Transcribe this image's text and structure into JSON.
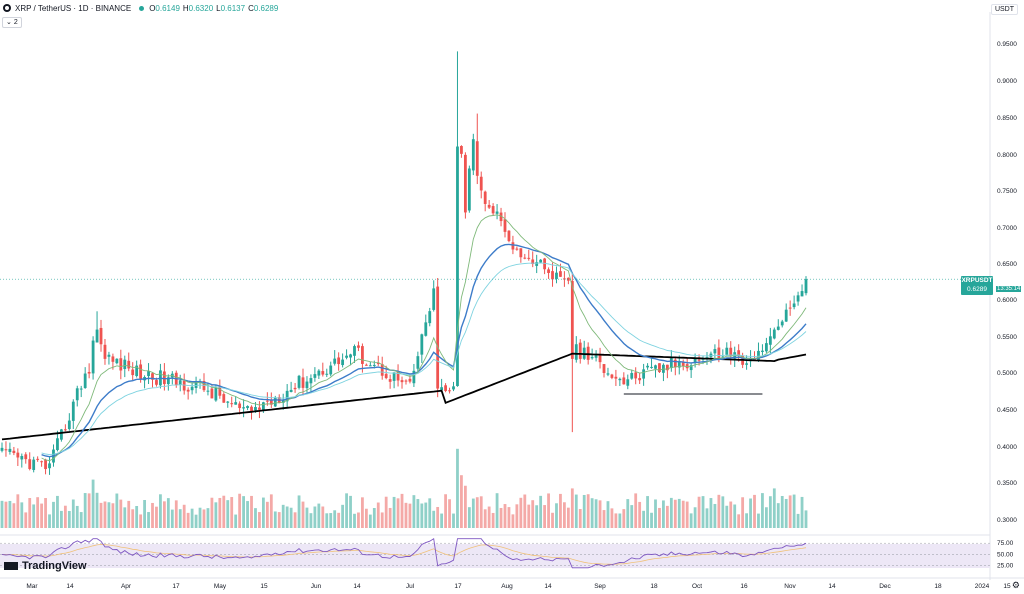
{
  "header": {
    "symbol": "XRP / TetherUS · 1D · BINANCE",
    "o_label": "O",
    "o_value": "0.6149",
    "h_label": "H",
    "h_value": "0.6320",
    "l_label": "L",
    "l_value": "0.6137",
    "c_label": "C",
    "c_value": "0.6289",
    "indicator_count": "2",
    "currency": "USDT"
  },
  "price_tag": {
    "symbol": "XRPUSDT",
    "price": "0.6289",
    "countdown": "13:35:14"
  },
  "branding": {
    "name": "TradingView"
  },
  "colors": {
    "up": "#26a69a",
    "down": "#ef5350",
    "ema_fast": "#7fb97a",
    "ema_mid": "#3d7cc9",
    "ema_light": "#7fd3e0",
    "ema_long": "#000000",
    "rsi": "#7e57c2"
  },
  "chart_data": {
    "type": "candlestick",
    "y_ticks": [
      "0.9500",
      "0.9000",
      "0.8500",
      "0.8000",
      "0.7500",
      "0.7000",
      "0.6500",
      "0.6000",
      "0.5500",
      "0.5000",
      "0.4500",
      "0.4000",
      "0.3500",
      "0.3000"
    ],
    "x_ticks": [
      "Mar",
      "14",
      "Apr",
      "17",
      "May",
      "15",
      "Jun",
      "14",
      "Jul",
      "17",
      "Aug",
      "14",
      "Sep",
      "18",
      "Oct",
      "16",
      "Nov",
      "14",
      "Dec",
      "18",
      "2024",
      "15"
    ],
    "ylim": [
      0.29,
      0.97
    ],
    "rsi_ticks": [
      "75.00",
      "50.00",
      "25.00"
    ],
    "support_level": 0.472,
    "ohlc_anchors": [
      [
        "Mar",
        0.384,
        0.392,
        0.372,
        0.386
      ],
      [
        "14",
        0.372,
        0.38,
        0.355,
        0.37
      ],
      [
        "Apr",
        0.545,
        0.585,
        0.5,
        0.51
      ],
      [
        "17",
        0.537,
        0.545,
        0.49,
        0.5
      ],
      [
        "May",
        0.47,
        0.48,
        0.45,
        0.46
      ],
      [
        "15",
        0.445,
        0.46,
        0.42,
        0.45
      ],
      [
        "Jun",
        0.5,
        0.52,
        0.47,
        0.49
      ],
      [
        "14",
        0.525,
        0.55,
        0.51,
        0.53
      ],
      [
        "Jul",
        0.478,
        0.49,
        0.465,
        0.48
      ],
      [
        "17",
        0.82,
        0.86,
        0.7,
        0.78
      ],
      [
        "Aug",
        0.662,
        0.68,
        0.63,
        0.64
      ],
      [
        "14",
        0.52,
        0.64,
        0.42,
        0.54
      ],
      [
        "Sep",
        0.5,
        0.51,
        0.47,
        0.495
      ],
      [
        "18",
        0.52,
        0.54,
        0.49,
        0.515
      ],
      [
        "Oct",
        0.52,
        0.55,
        0.5,
        0.53
      ],
      [
        "16",
        0.492,
        0.505,
        0.478,
        0.495
      ],
      [
        "Nov",
        0.6149,
        0.632,
        0.6137,
        0.6289
      ]
    ],
    "volume_range": [
      0,
      100
    ],
    "rsi_range": [
      0,
      100
    ]
  }
}
